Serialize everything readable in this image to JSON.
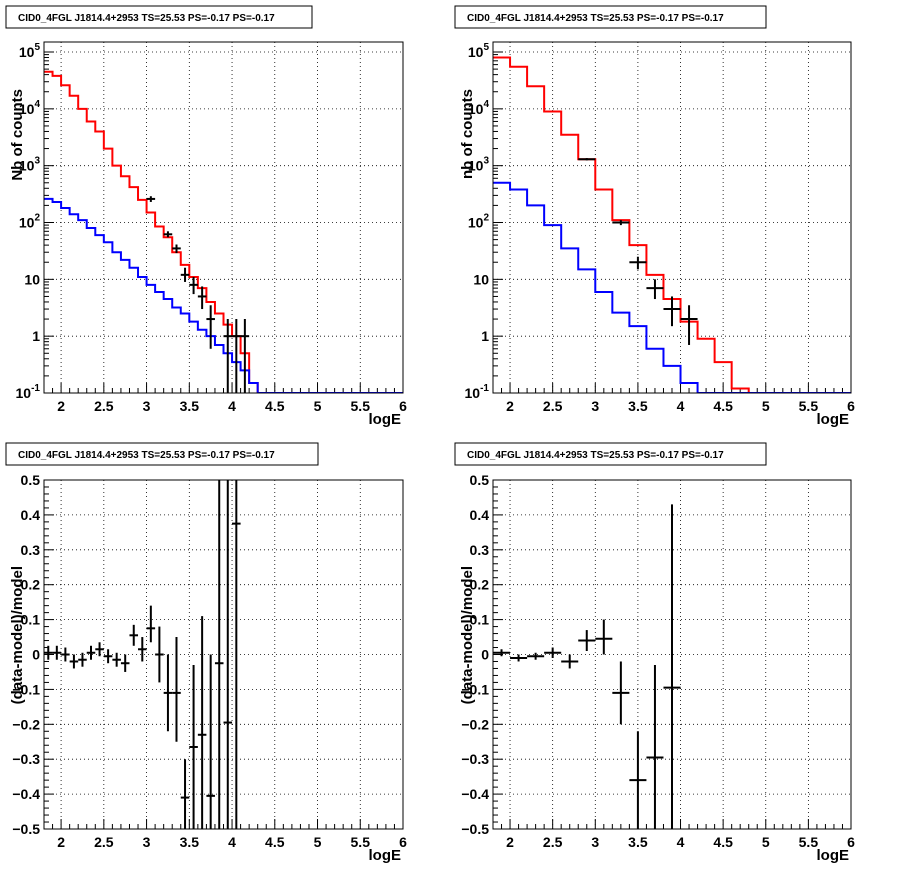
{
  "chart_data": [
    {
      "type": "line",
      "title": "CID0_4FGL J1814.4+2953 TS=25.53 PS=-0.17 PS=-0.17",
      "xlabel": "logE",
      "ylabel": "Nb of counts",
      "xlim": [
        1.8,
        6.0
      ],
      "ylim": [
        0.1,
        150000
      ],
      "yscale": "log",
      "grid": true,
      "x_ticks": [
        "2",
        "2.5",
        "3",
        "3.5",
        "4",
        "4.5",
        "5",
        "5.5",
        "6"
      ],
      "y_ticks": [
        "10^{-1}",
        "1",
        "10",
        "10^{2}",
        "10^{3}",
        "10^{4}",
        "10^{5}"
      ],
      "bin_edges": [
        1.8,
        1.9,
        2.0,
        2.1,
        2.2,
        2.3,
        2.4,
        2.5,
        2.6,
        2.7,
        2.8,
        2.9,
        3.0,
        3.1,
        3.2,
        3.3,
        3.4,
        3.5,
        3.6,
        3.7,
        3.8,
        3.9,
        4.0,
        4.1,
        4.2,
        4.3,
        4.4,
        4.5,
        4.6,
        4.7,
        4.8,
        4.9,
        5.0,
        5.1,
        5.2,
        5.3,
        5.4,
        5.5,
        5.6,
        5.7,
        5.8,
        5.9,
        6.0
      ],
      "series": [
        {
          "color": "#ff0000",
          "style": "step",
          "values": [
            45000,
            38000,
            26000,
            17000,
            10000,
            6000,
            4000,
            2000,
            1000,
            650,
            420,
            250,
            150,
            85,
            55,
            30,
            18,
            11,
            7,
            4,
            2.5,
            1.6,
            1.0,
            0.5,
            0.15,
            0.1,
            0.1,
            0.1,
            0.1,
            0.1,
            0.1,
            0.1,
            0.1,
            0.1,
            0.1,
            0.1,
            0.1,
            0.1,
            0.1,
            0.1,
            0.1,
            0.1
          ]
        },
        {
          "color": "#0000ff",
          "style": "step",
          "values": [
            260,
            230,
            180,
            140,
            110,
            80,
            60,
            45,
            30,
            22,
            16,
            11,
            8,
            6,
            4.5,
            3.2,
            2.5,
            1.8,
            1.3,
            1.0,
            0.7,
            0.5,
            0.35,
            0.25,
            0.15,
            0.1,
            0.1,
            0.1,
            0.1,
            0.1,
            0.1,
            0.1,
            0.1,
            0.1,
            0.1,
            0.1,
            0.1,
            0.1,
            0.1,
            0.1,
            0.1,
            0.1
          ]
        },
        {
          "color": "#000000",
          "style": "errorbar",
          "xerr": 0.05,
          "points": [
            {
              "x": 3.05,
              "y": 260,
              "lo": 230,
              "hi": 290
            },
            {
              "x": 3.25,
              "y": 62,
              "lo": 55,
              "hi": 70
            },
            {
              "x": 3.35,
              "y": 35,
              "lo": 29,
              "hi": 41
            },
            {
              "x": 3.45,
              "y": 12,
              "lo": 9,
              "hi": 16
            },
            {
              "x": 3.55,
              "y": 8,
              "lo": 5.5,
              "hi": 11
            },
            {
              "x": 3.65,
              "y": 5,
              "lo": 3,
              "hi": 7.5
            },
            {
              "x": 3.75,
              "y": 2,
              "lo": 0.6,
              "hi": 3.5
            },
            {
              "x": 3.95,
              "y": 1,
              "lo": 0.1,
              "hi": 2
            },
            {
              "x": 4.05,
              "y": 1,
              "lo": 0.1,
              "hi": 2
            },
            {
              "x": 4.15,
              "y": 1,
              "lo": 0.1,
              "hi": 2
            }
          ]
        }
      ]
    },
    {
      "type": "line",
      "title": "CID0_4FGL J1814.4+2953 TS=25.53 PS=-0.17 PS=-0.17",
      "xlabel": "logE",
      "ylabel": "nb of counts",
      "xlim": [
        1.8,
        6.0
      ],
      "ylim": [
        0.1,
        150000
      ],
      "yscale": "log",
      "grid": true,
      "x_ticks": [
        "2",
        "2.5",
        "3",
        "3.5",
        "4",
        "4.5",
        "5",
        "5.5",
        "6"
      ],
      "y_ticks": [
        "10^{-1}",
        "1",
        "10",
        "10^{2}",
        "10^{3}",
        "10^{4}",
        "10^{5}"
      ],
      "bin_edges": [
        1.8,
        2.0,
        2.2,
        2.4,
        2.6,
        2.8,
        3.0,
        3.2,
        3.4,
        3.6,
        3.8,
        4.0,
        4.2,
        4.4,
        4.6,
        4.8,
        5.0,
        5.2,
        5.4,
        5.6,
        5.8,
        6.0
      ],
      "series": [
        {
          "color": "#ff0000",
          "style": "step",
          "values": [
            80000,
            55000,
            25000,
            9000,
            3500,
            1300,
            380,
            110,
            40,
            12,
            4.5,
            1.8,
            0.9,
            0.35,
            0.12,
            0.1,
            0.1,
            0.1,
            0.1,
            0.1,
            0.1
          ]
        },
        {
          "color": "#0000ff",
          "style": "step",
          "values": [
            500,
            380,
            200,
            90,
            35,
            15,
            6,
            2.6,
            1.5,
            0.6,
            0.3,
            0.15,
            0.1,
            0.1,
            0.1,
            0.1,
            0.1,
            0.1,
            0.1,
            0.1,
            0.1
          ]
        },
        {
          "color": "#000000",
          "style": "errorbar",
          "xerr": 0.1,
          "points": [
            {
              "x": 2.9,
              "y": 1300,
              "lo": 1240,
              "hi": 1360
            },
            {
              "x": 3.3,
              "y": 100,
              "lo": 90,
              "hi": 110
            },
            {
              "x": 3.5,
              "y": 20,
              "lo": 15,
              "hi": 25
            },
            {
              "x": 3.7,
              "y": 7,
              "lo": 4.5,
              "hi": 10
            },
            {
              "x": 3.9,
              "y": 3,
              "lo": 1.5,
              "hi": 5
            },
            {
              "x": 4.1,
              "y": 2,
              "lo": 0.7,
              "hi": 3.5
            }
          ]
        }
      ]
    },
    {
      "type": "scatter",
      "title": "CID0_4FGL J1814.4+2953 TS=25.53 PS=-0.17 PS=-0.17",
      "xlabel": "logE",
      "ylabel": "(data-model)/model",
      "xlim": [
        1.8,
        6.0
      ],
      "ylim": [
        -0.5,
        0.5
      ],
      "grid": true,
      "x_ticks": [
        "2",
        "2.5",
        "3",
        "3.5",
        "4",
        "4.5",
        "5",
        "5.5",
        "6"
      ],
      "y_ticks": [
        "−0.5",
        "−0.4",
        "−0.3",
        "−0.2",
        "−0.1",
        "0",
        "0.1",
        "0.2",
        "0.3",
        "0.4",
        "0.5"
      ],
      "series": [
        {
          "color": "#000000",
          "style": "errorbar",
          "xerr": 0.05,
          "points": [
            {
              "x": 1.85,
              "y": 0.005,
              "lo": -0.015,
              "hi": 0.025
            },
            {
              "x": 1.95,
              "y": 0.005,
              "lo": -0.015,
              "hi": 0.025
            },
            {
              "x": 2.05,
              "y": 0.0,
              "lo": -0.02,
              "hi": 0.02
            },
            {
              "x": 2.15,
              "y": -0.02,
              "lo": -0.04,
              "hi": 0.0
            },
            {
              "x": 2.25,
              "y": -0.015,
              "lo": -0.035,
              "hi": 0.005
            },
            {
              "x": 2.35,
              "y": 0.005,
              "lo": -0.015,
              "hi": 0.025
            },
            {
              "x": 2.45,
              "y": 0.015,
              "lo": -0.005,
              "hi": 0.035
            },
            {
              "x": 2.55,
              "y": -0.005,
              "lo": -0.025,
              "hi": 0.015
            },
            {
              "x": 2.65,
              "y": -0.015,
              "lo": -0.035,
              "hi": 0.005
            },
            {
              "x": 2.75,
              "y": -0.025,
              "lo": -0.05,
              "hi": 0.0
            },
            {
              "x": 2.85,
              "y": 0.055,
              "lo": 0.025,
              "hi": 0.085
            },
            {
              "x": 2.95,
              "y": 0.015,
              "lo": -0.02,
              "hi": 0.05
            },
            {
              "x": 3.05,
              "y": 0.075,
              "lo": 0.035,
              "hi": 0.14
            },
            {
              "x": 3.15,
              "y": 0.0,
              "lo": -0.08,
              "hi": 0.08
            },
            {
              "x": 3.25,
              "y": -0.11,
              "lo": -0.22,
              "hi": 0.0
            },
            {
              "x": 3.35,
              "y": -0.11,
              "lo": -0.25,
              "hi": 0.05
            },
            {
              "x": 3.45,
              "y": -0.41,
              "lo": -0.5,
              "hi": -0.3
            },
            {
              "x": 3.55,
              "y": -0.265,
              "lo": -0.5,
              "hi": -0.03
            },
            {
              "x": 3.65,
              "y": -0.23,
              "lo": -0.5,
              "hi": 0.11
            },
            {
              "x": 3.75,
              "y": -0.405,
              "lo": -0.5,
              "hi": 0.0
            },
            {
              "x": 3.85,
              "y": -0.025,
              "lo": -0.5,
              "hi": 0.5
            },
            {
              "x": 3.95,
              "y": -0.195,
              "lo": -0.5,
              "hi": 0.5
            },
            {
              "x": 4.05,
              "y": 0.375,
              "lo": -0.5,
              "hi": 0.5
            }
          ]
        }
      ]
    },
    {
      "type": "scatter",
      "title": "CID0_4FGL J1814.4+2953 TS=25.53 PS=-0.17 PS=-0.17",
      "xlabel": "logE",
      "ylabel": "(data-model)/model",
      "xlim": [
        1.8,
        6.0
      ],
      "ylim": [
        -0.5,
        0.5
      ],
      "grid": true,
      "x_ticks": [
        "2",
        "2.5",
        "3",
        "3.5",
        "4",
        "4.5",
        "5",
        "5.5",
        "6"
      ],
      "y_ticks": [
        "−0.5",
        "−0.4",
        "−0.3",
        "−0.2",
        "−0.1",
        "0",
        "0.1",
        "0.2",
        "0.3",
        "0.4",
        "0.5"
      ],
      "series": [
        {
          "color": "#000000",
          "style": "errorbar",
          "xerr": 0.1,
          "points": [
            {
              "x": 1.9,
              "y": 0.005,
              "lo": -0.005,
              "hi": 0.015
            },
            {
              "x": 2.1,
              "y": -0.01,
              "lo": -0.02,
              "hi": 0.0
            },
            {
              "x": 2.3,
              "y": -0.005,
              "lo": -0.015,
              "hi": 0.005
            },
            {
              "x": 2.5,
              "y": 0.005,
              "lo": -0.01,
              "hi": 0.02
            },
            {
              "x": 2.7,
              "y": -0.02,
              "lo": -0.04,
              "hi": 0.0
            },
            {
              "x": 2.9,
              "y": 0.04,
              "lo": 0.01,
              "hi": 0.07
            },
            {
              "x": 3.1,
              "y": 0.045,
              "lo": 0.0,
              "hi": 0.1
            },
            {
              "x": 3.3,
              "y": -0.11,
              "lo": -0.2,
              "hi": -0.02
            },
            {
              "x": 3.5,
              "y": -0.36,
              "lo": -0.5,
              "hi": -0.22
            },
            {
              "x": 3.7,
              "y": -0.295,
              "lo": -0.5,
              "hi": -0.03
            },
            {
              "x": 3.9,
              "y": -0.095,
              "lo": -0.5,
              "hi": 0.43
            }
          ]
        }
      ]
    }
  ]
}
